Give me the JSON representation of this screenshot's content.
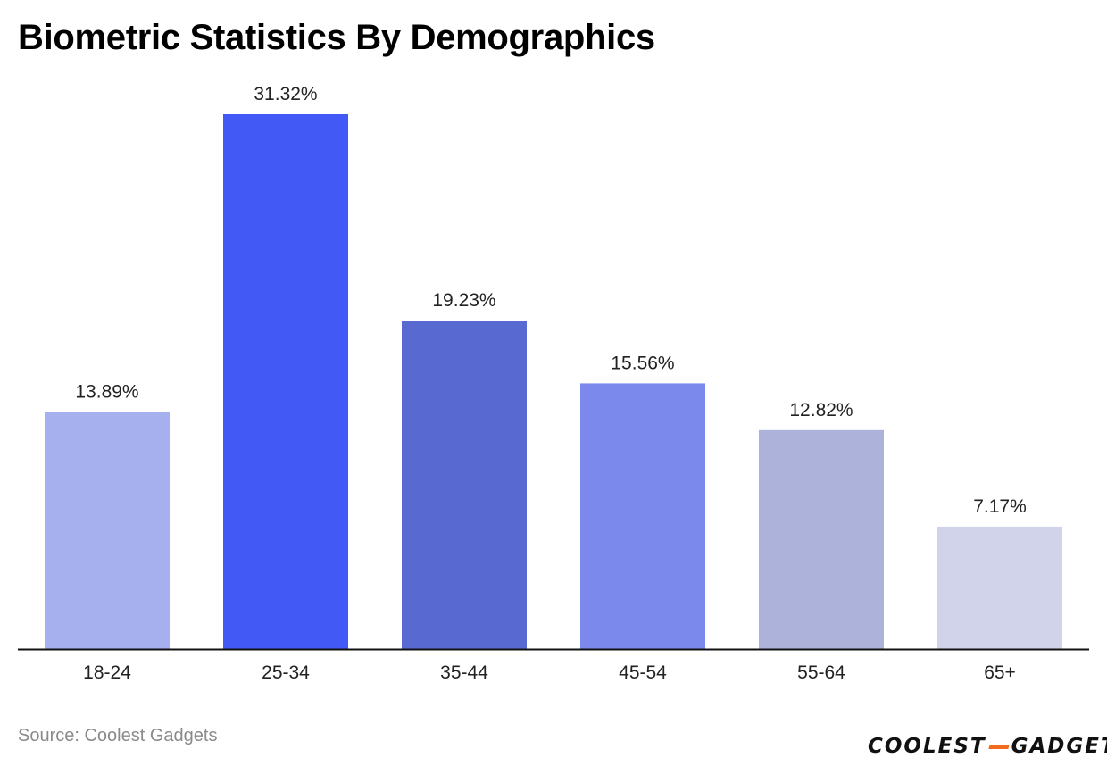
{
  "title": "Biometric Statistics By Demographics",
  "source": "Source: Coolest Gadgets",
  "logo": {
    "part1": "COOLEST",
    "part2": "GADGETS"
  },
  "chart_data": {
    "type": "bar",
    "title": "Biometric Statistics By Demographics",
    "xlabel": "",
    "ylabel": "",
    "categories": [
      "18-24",
      "25-34",
      "35-44",
      "45-54",
      "55-64",
      "65+"
    ],
    "values": [
      13.89,
      31.32,
      19.23,
      15.56,
      12.82,
      7.17
    ],
    "data_labels": [
      "13.89%",
      "31.32%",
      "19.23%",
      "15.56%",
      "12.82%",
      "7.17%"
    ],
    "colors": [
      "#a6b0ee",
      "#4259f5",
      "#586ad1",
      "#7a89eb",
      "#acb2da",
      "#d0d3e9"
    ],
    "ylim": [
      0,
      31.32
    ],
    "grid": false,
    "legend": "none",
    "axis_color": "#111111"
  }
}
